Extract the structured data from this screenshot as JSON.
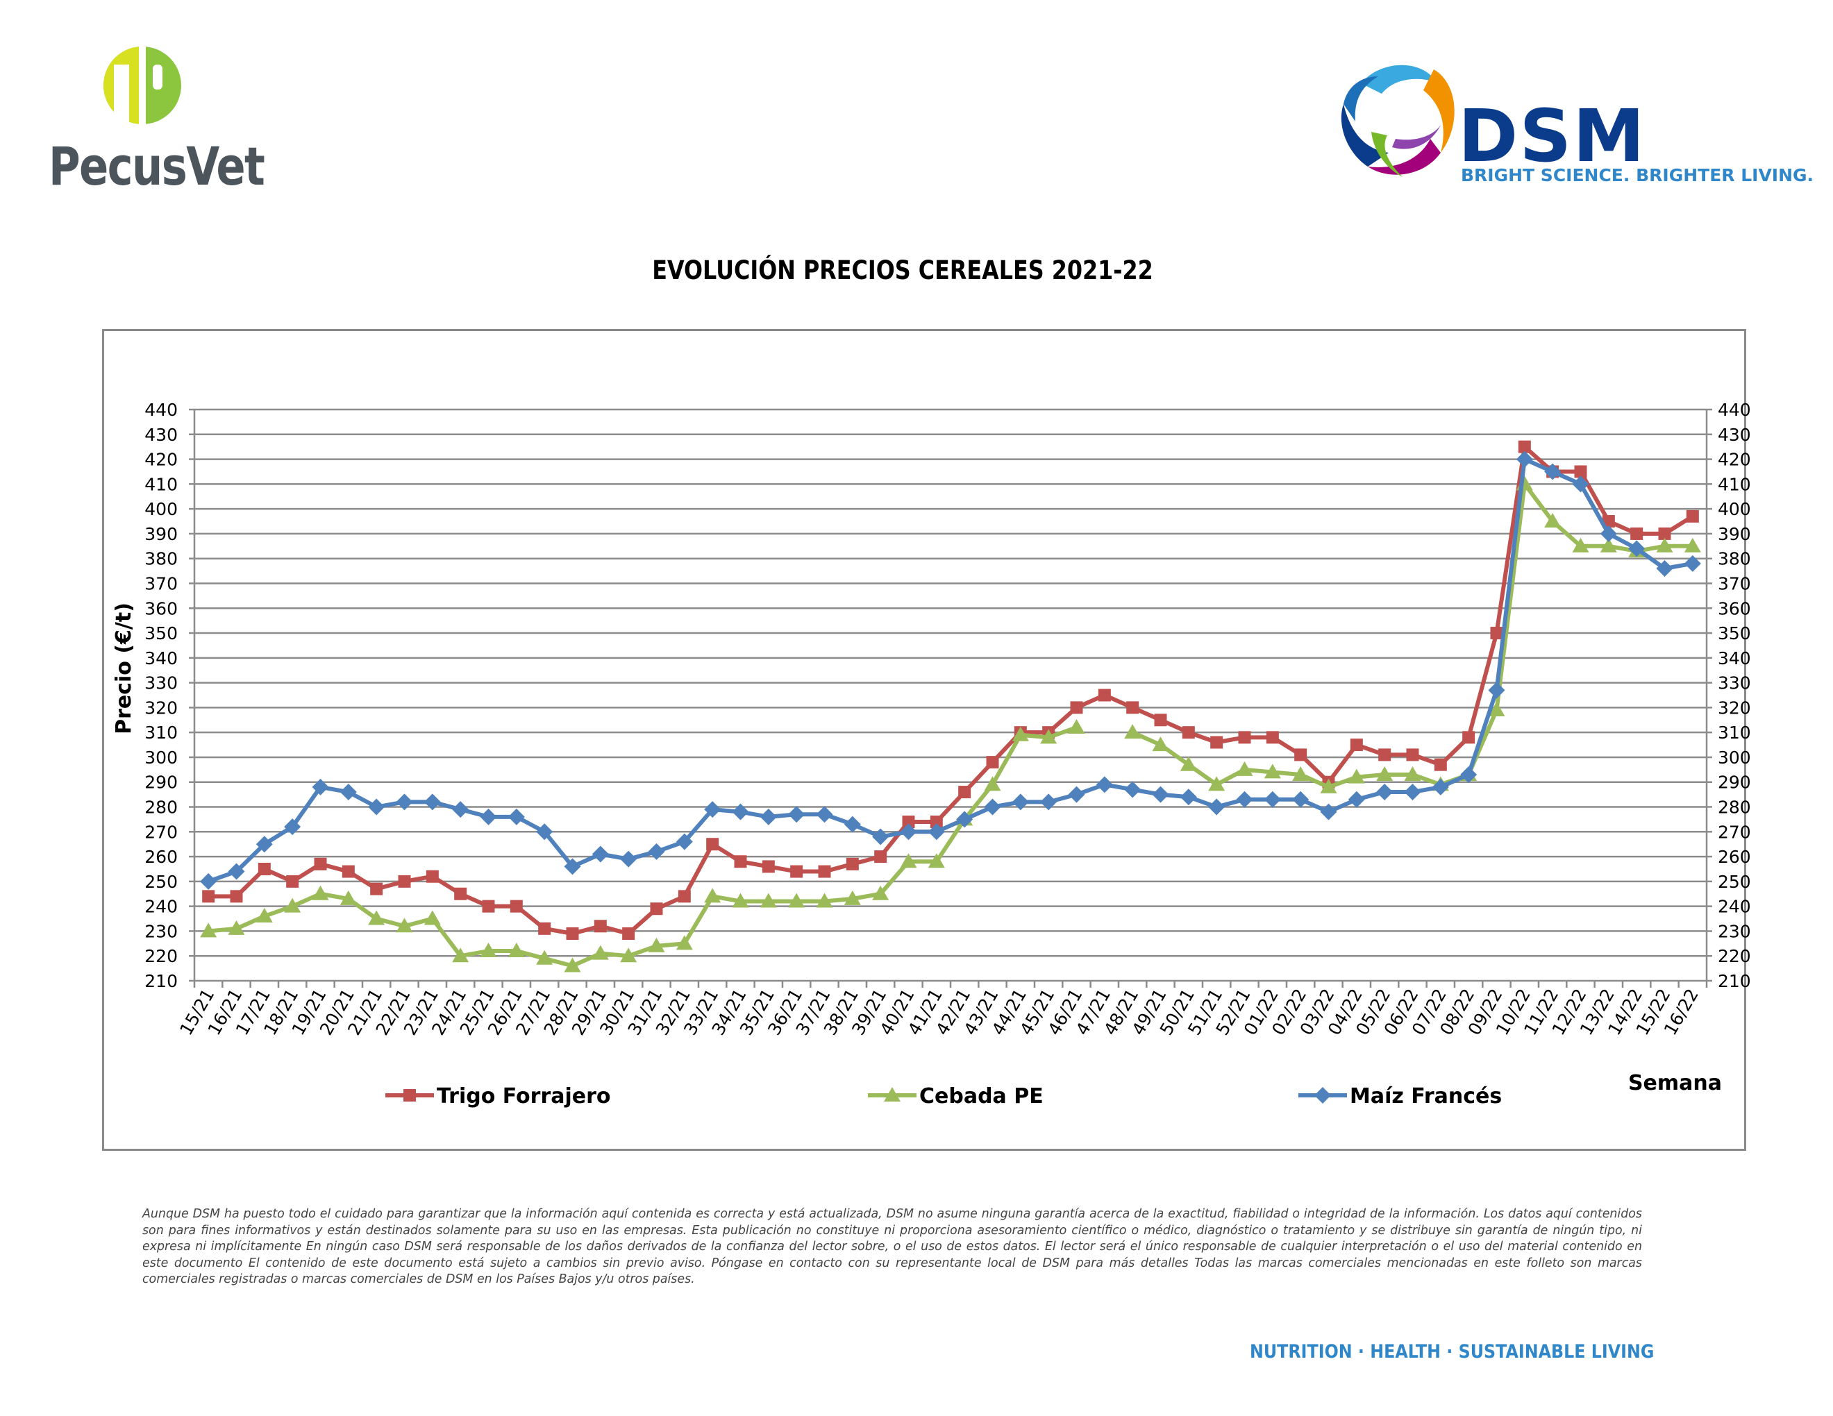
{
  "header": {
    "left_logo_text": "PecusVet",
    "right_logo_text": "DSM",
    "right_logo_slogan": "BRIGHT SCIENCE. BRIGHTER LIVING."
  },
  "chart_data": {
    "type": "line",
    "title": "EVOLUCIÓN PRECIOS CEREALES 2021-22",
    "xlabel": "Semana",
    "ylabel": "Precio (€/t)",
    "ylim": [
      210,
      440
    ],
    "y_ticks": [
      210,
      220,
      230,
      240,
      250,
      260,
      270,
      280,
      290,
      300,
      310,
      320,
      330,
      340,
      350,
      360,
      370,
      380,
      390,
      400,
      410,
      420,
      430,
      440
    ],
    "grid": true,
    "secondary_y_axis": true,
    "legend_position": "bottom",
    "categories": [
      "15/21",
      "16/21",
      "17/21",
      "18/21",
      "19/21",
      "20/21",
      "21/21",
      "22/21",
      "23/21",
      "24/21",
      "25/21",
      "26/21",
      "27/21",
      "28/21",
      "29/21",
      "30/21",
      "31/21",
      "32/21",
      "33/21",
      "34/21",
      "35/21",
      "36/21",
      "37/21",
      "38/21",
      "39/21",
      "40/21",
      "41/21",
      "42/21",
      "43/21",
      "44/21",
      "45/21",
      "46/21",
      "47/21",
      "48/21",
      "49/21",
      "50/21",
      "51/21",
      "52/21",
      "01/22",
      "02/22",
      "03/22",
      "04/22",
      "05/22",
      "06/22",
      "07/22",
      "08/22",
      "09/22",
      "10/22",
      "11/22",
      "12/22",
      "13/22",
      "14/22",
      "15/22",
      "16/22"
    ],
    "series": [
      {
        "name": "Trigo Forrajero",
        "color": "#c0504d",
        "marker": "square",
        "values": [
          244,
          244,
          255,
          250,
          257,
          254,
          247,
          250,
          252,
          245,
          240,
          240,
          231,
          229,
          232,
          229,
          239,
          244,
          265,
          258,
          256,
          254,
          254,
          257,
          260,
          274,
          274,
          286,
          298,
          310,
          310,
          320,
          325,
          320,
          315,
          310,
          306,
          308,
          308,
          301,
          290,
          305,
          301,
          301,
          297,
          308,
          350,
          425,
          415,
          415,
          395,
          390,
          390,
          397
        ]
      },
      {
        "name": "Cebada PE",
        "color": "#9bbb59",
        "marker": "triangle",
        "values": [
          230,
          231,
          236,
          240,
          245,
          243,
          235,
          232,
          235,
          220,
          222,
          222,
          219,
          216,
          221,
          220,
          224,
          225,
          244,
          242,
          242,
          242,
          242,
          243,
          245,
          258,
          258,
          275,
          289,
          309,
          308,
          312,
          null,
          310,
          305,
          297,
          289,
          295,
          294,
          293,
          288,
          292,
          293,
          293,
          289,
          293,
          319,
          410,
          395,
          385,
          385,
          383,
          385,
          385
        ]
      },
      {
        "name": "Maíz Francés",
        "color": "#4f81bd",
        "marker": "diamond",
        "values": [
          250,
          254,
          265,
          272,
          288,
          286,
          280,
          282,
          282,
          279,
          276,
          276,
          270,
          256,
          261,
          259,
          262,
          266,
          279,
          278,
          276,
          277,
          277,
          273,
          268,
          270,
          270,
          275,
          280,
          282,
          282,
          285,
          289,
          287,
          285,
          284,
          280,
          283,
          283,
          283,
          278,
          283,
          286,
          286,
          288,
          293,
          327,
          420,
          415,
          410,
          390,
          384,
          376,
          378
        ]
      }
    ]
  },
  "disclaimer": "Aunque DSM ha puesto todo el cuidado para garantizar que la información aquí contenida es correcta y está actualizada, DSM no asume ninguna garantía acerca de la exactitud, fiabilidad o integridad de la información. Los datos aquí contenidos son para fines informativos y están destinados solamente para su uso en las empresas. Esta publicación no constituye ni proporciona asesoramiento científico o médico, diagnóstico o tratamiento y se distribuye sin garantía de ningún tipo, ni expresa ni implícitamente En ningún caso DSM será responsable de los daños derivados de la confianza del lector sobre, o el uso de estos datos. El lector será el único responsable de cualquier interpretación o el uso del material contenido en este documento El contenido de este documento está sujeto a cambios sin previo aviso. Póngase en contacto con su representante local de DSM para más detalles Todas las marcas comerciales mencionadas en este folleto son marcas comerciales registradas o marcas comerciales de DSM en los Países Bajos y/u otros países.",
  "footer": {
    "tagline": "NUTRITION · HEALTH · SUSTAINABLE LIVING"
  }
}
